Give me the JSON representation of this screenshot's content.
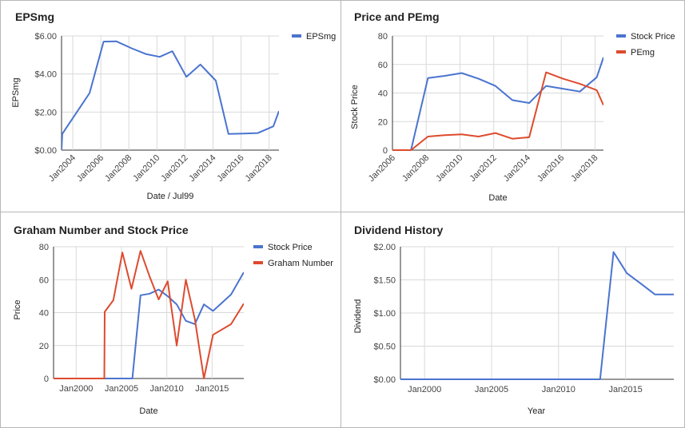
{
  "colors": {
    "blue": "#4a74cf",
    "red": "#dd4b2e",
    "grid": "#d9d9d9",
    "axis": "#333333"
  },
  "chart_data": [
    {
      "id": "epsmg",
      "type": "line",
      "title": "EPSmg",
      "xlabel": "Date / Jul99",
      "ylabel": "EPSmg",
      "xlim": [
        2003.2,
        2018.7
      ],
      "ylim": [
        0,
        6
      ],
      "y_format": "money",
      "y_ticks": [
        0,
        2,
        4,
        6
      ],
      "y_tick_labels": [
        "$0.00",
        "$2.00",
        "$4.00",
        "$6.00"
      ],
      "x_ticks": [
        2004,
        2006,
        2008,
        2010,
        2012,
        2014,
        2016,
        2018
      ],
      "x_tick_labels": [
        "Jan2004",
        "Jan2006",
        "Jan2008",
        "Jan2010",
        "Jan2012",
        "Jan2014",
        "Jan2016",
        "Jan2018"
      ],
      "rotate_x_labels": true,
      "grid": true,
      "legend": "top-right",
      "series": [
        {
          "name": "EPSmg",
          "color": "#4a74cf",
          "x": [
            2003.2,
            2003.25,
            2005.2,
            2006.2,
            2007.1,
            2008.2,
            2009.2,
            2010.2,
            2011.1,
            2012.1,
            2013.1,
            2014.2,
            2015.1,
            2016.2,
            2017.2,
            2018.3,
            2018.7
          ],
          "y": [
            0,
            0.85,
            3.0,
            5.7,
            5.72,
            5.35,
            5.05,
            4.9,
            5.2,
            3.85,
            4.5,
            3.65,
            0.85,
            0.87,
            0.9,
            1.25,
            2.05
          ]
        }
      ]
    },
    {
      "id": "price-pemg",
      "type": "line",
      "title": "Price and PEmg",
      "xlabel": "Date",
      "ylabel": "Stock Price",
      "xlim": [
        2006,
        2018.5
      ],
      "ylim": [
        0,
        80
      ],
      "y_ticks": [
        0,
        20,
        40,
        60,
        80
      ],
      "y_tick_labels": [
        "0",
        "20",
        "40",
        "60",
        "80"
      ],
      "x_ticks": [
        2006,
        2008,
        2010,
        2012,
        2014,
        2016,
        2018
      ],
      "x_tick_labels": [
        "Jan2006",
        "Jan2008",
        "Jan2010",
        "Jan2012",
        "Jan2014",
        "Jan2016",
        "Jan2018"
      ],
      "rotate_x_labels": true,
      "grid": true,
      "legend": "top-right",
      "series": [
        {
          "name": "Stock Price",
          "color": "#4a74cf",
          "x": [
            2006,
            2007.1,
            2008.1,
            2009.1,
            2010.1,
            2011.1,
            2012.1,
            2013.1,
            2014.1,
            2015.1,
            2016.1,
            2017.1,
            2018.1,
            2018.5
          ],
          "y": [
            0,
            0,
            50.5,
            52,
            54,
            50,
            45,
            35,
            33,
            45,
            43,
            41,
            51,
            65
          ]
        },
        {
          "name": "PEmg",
          "color": "#dd4b2e",
          "x": [
            2006,
            2007.1,
            2008.1,
            2009.1,
            2010.1,
            2011.1,
            2012.1,
            2013.1,
            2014.1,
            2015.1,
            2016.1,
            2017.1,
            2018.1,
            2018.5
          ],
          "y": [
            0,
            0,
            9.5,
            10.5,
            11,
            9.5,
            12,
            8,
            9,
            54.5,
            50,
            46.5,
            42,
            31.5
          ]
        }
      ]
    },
    {
      "id": "graham",
      "type": "line",
      "title": "Graham Number and Stock Price",
      "xlabel": "Date",
      "ylabel": "Price",
      "xlim": [
        1997.5,
        2018.5
      ],
      "ylim": [
        0,
        80
      ],
      "y_ticks": [
        0,
        20,
        40,
        60,
        80
      ],
      "y_tick_labels": [
        "0",
        "20",
        "40",
        "60",
        "80"
      ],
      "x_ticks": [
        2000,
        2005,
        2010,
        2015
      ],
      "x_tick_labels": [
        "Jan2000",
        "Jan2005",
        "Jan2010",
        "Jan2015"
      ],
      "rotate_x_labels": false,
      "grid": true,
      "legend": "top-right",
      "series": [
        {
          "name": "Stock Price",
          "color": "#4a74cf",
          "x": [
            1997.5,
            2006.2,
            2007.1,
            2008.1,
            2009.1,
            2010.1,
            2011.1,
            2012.1,
            2013.1,
            2014.1,
            2015.1,
            2017.1,
            2018.5
          ],
          "y": [
            0,
            0,
            50.5,
            51.5,
            54,
            50,
            45,
            35,
            33,
            45,
            41,
            51,
            64.5
          ]
        },
        {
          "name": "Graham Number",
          "color": "#dd4b2e",
          "x": [
            1997.5,
            2003.1,
            2003.15,
            2004.1,
            2005.1,
            2006.1,
            2007.1,
            2008.1,
            2009.1,
            2010.1,
            2011.1,
            2012.1,
            2013.1,
            2014.1,
            2015.1,
            2017.1,
            2018.5
          ],
          "y": [
            0,
            0,
            40.5,
            47.5,
            76.5,
            54.5,
            77.5,
            62,
            48,
            59,
            20,
            60,
            36,
            0,
            26.5,
            33,
            45.5
          ]
        }
      ]
    },
    {
      "id": "dividend",
      "type": "line",
      "title": "Dividend History",
      "xlabel": "Year",
      "ylabel": "Dividend",
      "xlim": [
        1998.2,
        2018.6
      ],
      "ylim": [
        0,
        2
      ],
      "y_format": "money",
      "y_ticks": [
        0,
        0.5,
        1,
        1.5,
        2
      ],
      "y_tick_labels": [
        "$0.00",
        "$0.50",
        "$1.00",
        "$1.50",
        "$2.00"
      ],
      "x_ticks": [
        2000,
        2005,
        2010,
        2015
      ],
      "x_tick_labels": [
        "Jan2000",
        "Jan2005",
        "Jan2010",
        "Jan2015"
      ],
      "rotate_x_labels": false,
      "grid": true,
      "legend": "none",
      "series": [
        {
          "name": "",
          "color": "#4a74cf",
          "x": [
            1998.2,
            2013.1,
            2014.1,
            2015.1,
            2016.1,
            2017.2,
            2018.6
          ],
          "y": [
            0,
            0,
            1.92,
            1.6,
            1.45,
            1.28,
            1.28
          ]
        }
      ]
    }
  ]
}
